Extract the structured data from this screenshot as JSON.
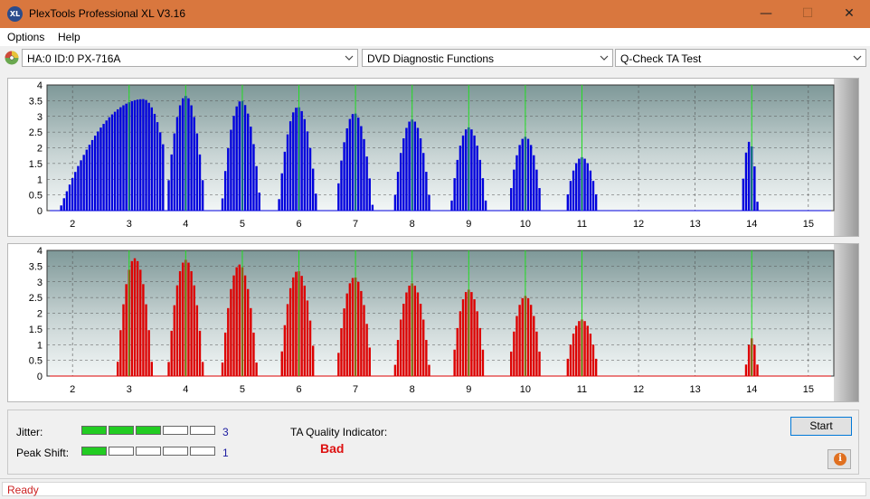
{
  "window": {
    "title": "PlexTools Professional XL V3.16",
    "icon_text": "XL",
    "minimize_glyph": "—",
    "maximize_glyph": "☐",
    "close_glyph": "✕"
  },
  "menu": {
    "items": [
      "Options",
      "Help"
    ]
  },
  "toolbar": {
    "drive": "HA:0 ID:0  PX-716A",
    "function": "DVD Diagnostic Functions",
    "test": "Q-Check TA Test"
  },
  "chart_data": [
    {
      "type": "bar",
      "color": "#0000dd",
      "x_ticks": [
        2,
        3,
        4,
        5,
        6,
        7,
        8,
        9,
        10,
        11,
        12,
        13,
        14,
        15
      ],
      "y_ticks": [
        "4",
        "3.5",
        "3",
        "2.5",
        "2",
        "1.5",
        "1",
        "0.5",
        "0"
      ],
      "ylim": [
        0,
        4
      ],
      "xlim": [
        1.55,
        15.45
      ],
      "peaks": [
        {
          "center": 3.25,
          "height": 3.55,
          "width": 0.55,
          "start": 1.6,
          "end": 3.6,
          "shoulder": true
        },
        {
          "center": 4.0,
          "height": 3.65,
          "width": 0.35,
          "start": 3.6,
          "end": 4.5
        },
        {
          "center": 4.98,
          "height": 3.5,
          "width": 0.35,
          "start": 4.5,
          "end": 5.45
        },
        {
          "center": 5.98,
          "height": 3.3,
          "width": 0.35,
          "start": 5.45,
          "end": 6.45
        },
        {
          "center": 6.98,
          "height": 3.1,
          "width": 0.33,
          "start": 6.45,
          "end": 7.45
        },
        {
          "center": 8.0,
          "height": 2.9,
          "width": 0.33,
          "start": 7.45,
          "end": 8.45
        },
        {
          "center": 9.0,
          "height": 2.65,
          "width": 0.32,
          "start": 8.45,
          "end": 9.45
        },
        {
          "center": 10.0,
          "height": 2.35,
          "width": 0.3,
          "start": 9.45,
          "end": 10.45
        },
        {
          "center": 11.0,
          "height": 1.7,
          "width": 0.3,
          "start": 10.45,
          "end": 11.3
        },
        {
          "center": 13.96,
          "height": 2.2,
          "width": 0.15,
          "start": 13.7,
          "end": 14.2
        }
      ]
    },
    {
      "type": "bar",
      "color": "#dd0000",
      "x_ticks": [
        2,
        3,
        4,
        5,
        6,
        7,
        8,
        9,
        10,
        11,
        12,
        13,
        14,
        15
      ],
      "y_ticks": [
        "4",
        "3.5",
        "3",
        "2.5",
        "2",
        "1.5",
        "1",
        "0.5",
        "0"
      ],
      "ylim": [
        0,
        4
      ],
      "xlim": [
        1.55,
        15.45
      ],
      "peaks": [
        {
          "center": 3.1,
          "height": 3.75,
          "width": 0.32,
          "start": 2.6,
          "end": 3.6
        },
        {
          "center": 4.0,
          "height": 3.7,
          "width": 0.32,
          "start": 3.6,
          "end": 4.5
        },
        {
          "center": 4.95,
          "height": 3.55,
          "width": 0.32,
          "start": 4.5,
          "end": 5.45
        },
        {
          "center": 5.98,
          "height": 3.35,
          "width": 0.32,
          "start": 5.45,
          "end": 6.45
        },
        {
          "center": 6.98,
          "height": 3.15,
          "width": 0.32,
          "start": 6.45,
          "end": 7.45
        },
        {
          "center": 8.0,
          "height": 2.95,
          "width": 0.32,
          "start": 7.45,
          "end": 8.45
        },
        {
          "center": 9.0,
          "height": 2.75,
          "width": 0.3,
          "start": 8.45,
          "end": 9.45
        },
        {
          "center": 10.0,
          "height": 2.55,
          "width": 0.3,
          "start": 9.45,
          "end": 10.45
        },
        {
          "center": 11.0,
          "height": 1.8,
          "width": 0.3,
          "start": 10.45,
          "end": 11.3
        },
        {
          "center": 14.0,
          "height": 1.2,
          "width": 0.12,
          "start": 13.8,
          "end": 14.25
        }
      ]
    }
  ],
  "results": {
    "jitter_label": "Jitter:",
    "jitter_value": "3",
    "jitter_level": 3,
    "peak_shift_label": "Peak Shift:",
    "peak_shift_value": "1",
    "peak_shift_level": 1,
    "meter_segments": 5,
    "ta_label": "TA Quality Indicator:",
    "ta_value": "Bad"
  },
  "buttons": {
    "start": "Start",
    "info_glyph": "i"
  },
  "status": {
    "text": "Ready"
  }
}
